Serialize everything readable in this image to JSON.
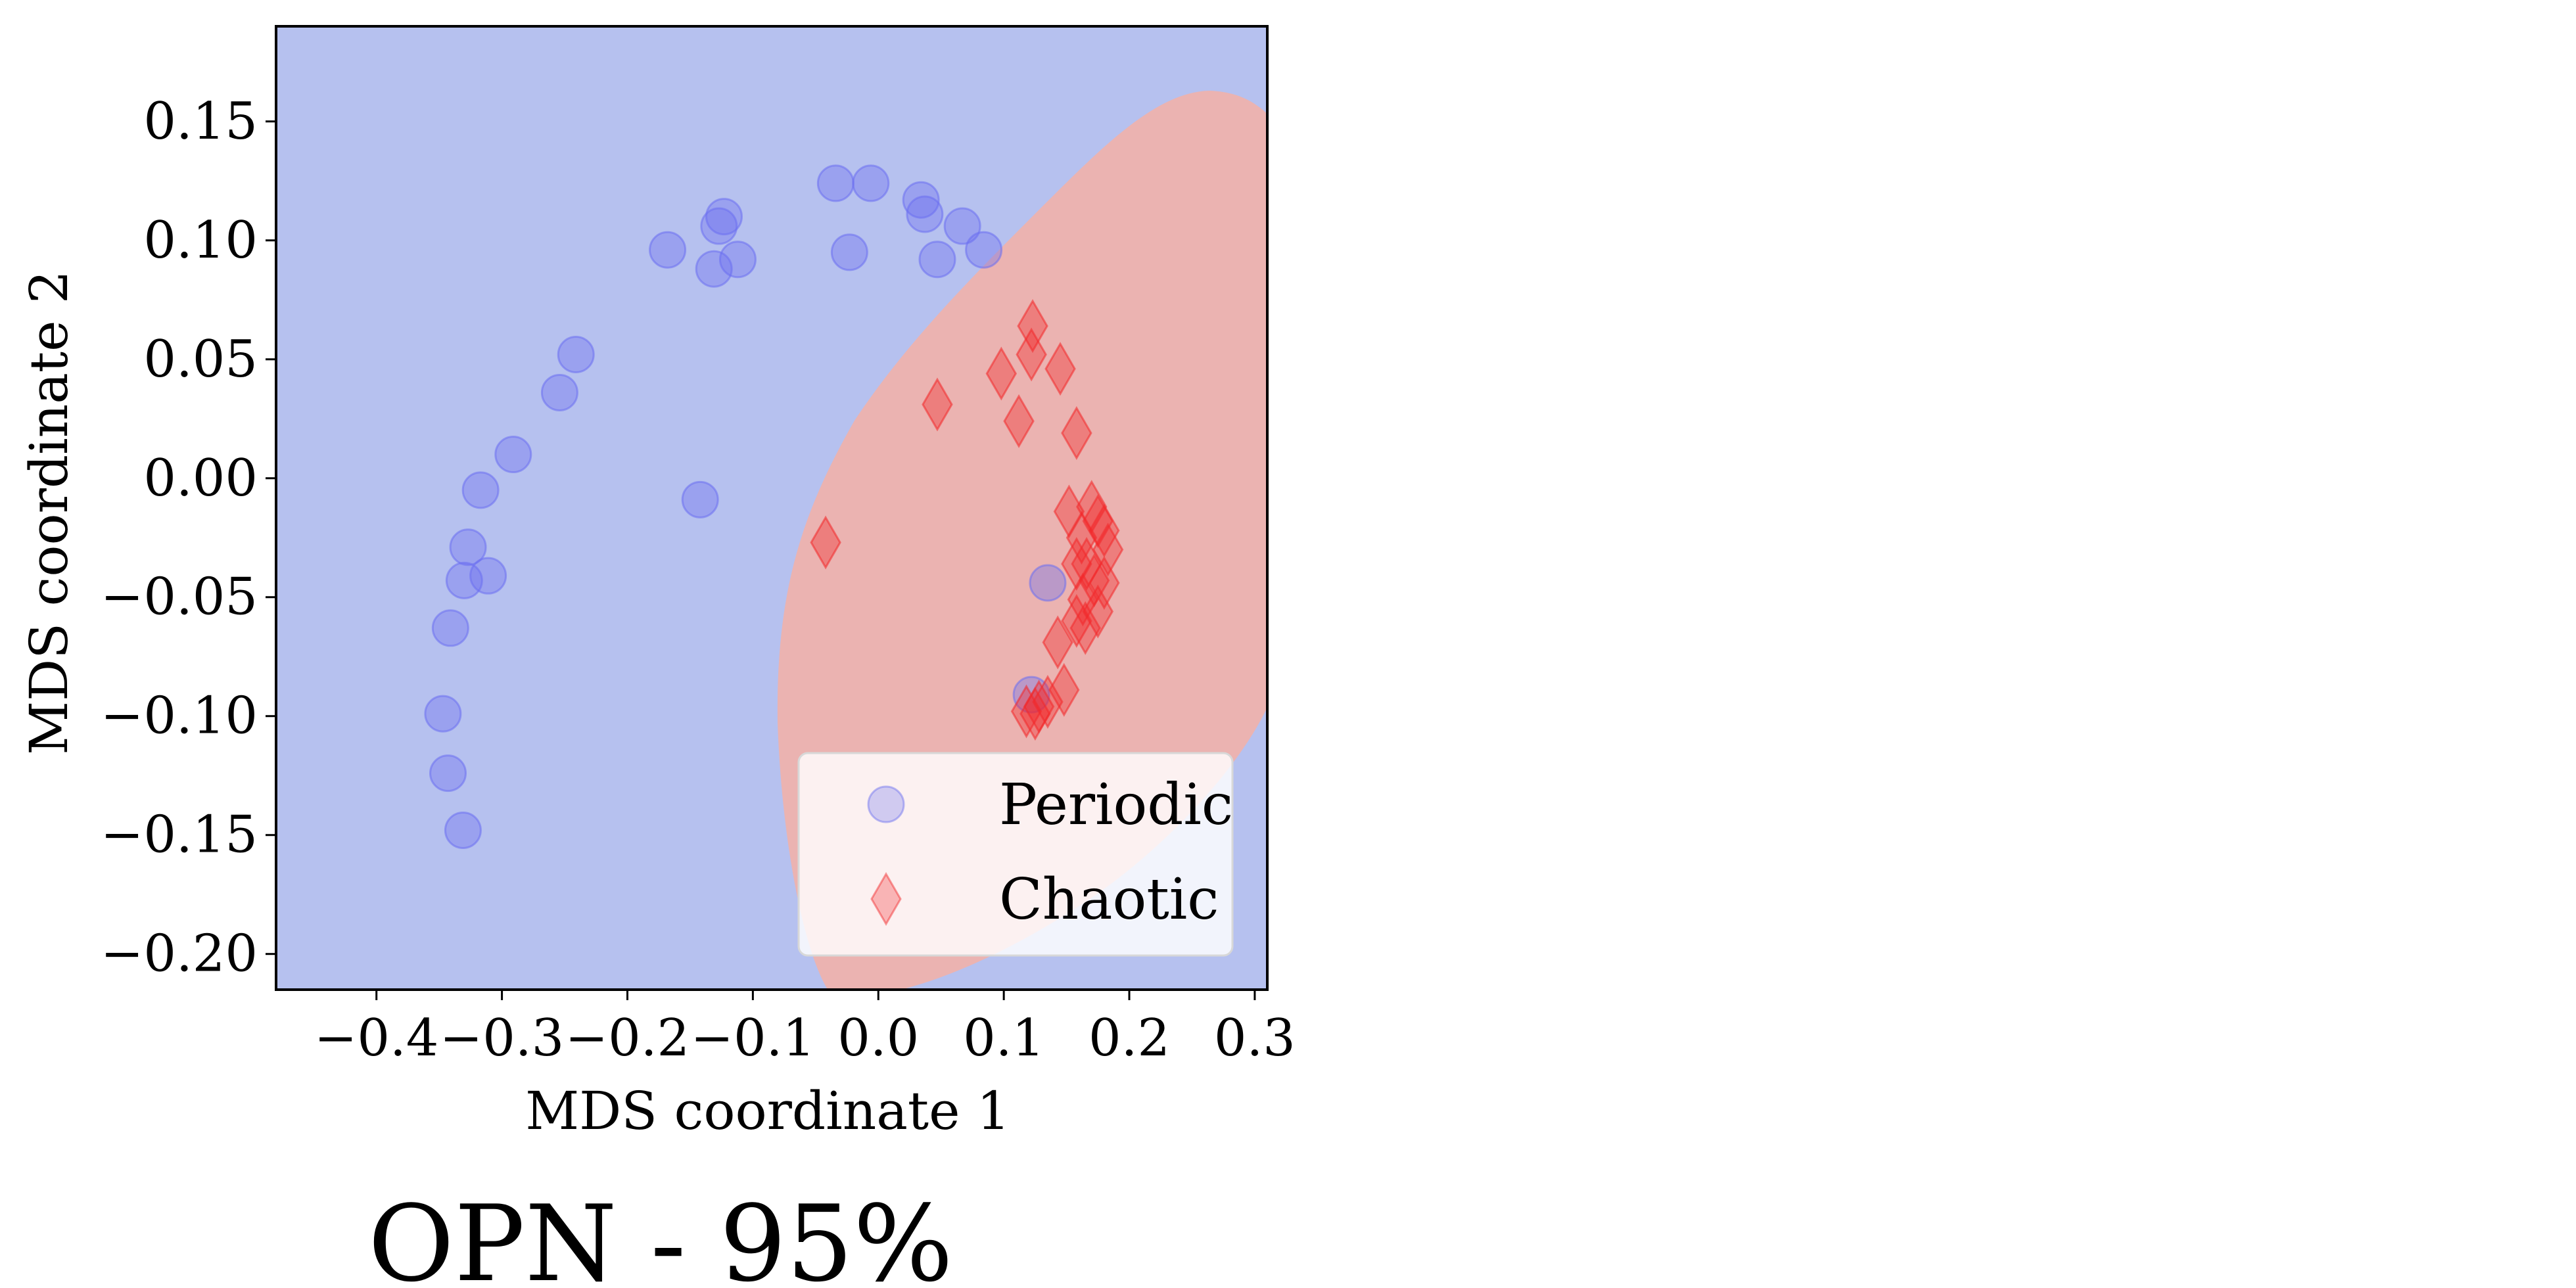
{
  "chart_data": {
    "type": "scatter",
    "title": "",
    "xlabel": "MDS coordinate 1",
    "ylabel": "MDS coordinate 2",
    "xlim": [
      -0.48,
      0.31
    ],
    "ylim": [
      -0.215,
      0.19
    ],
    "xticks": [
      -0.4,
      -0.3,
      -0.2,
      -0.1,
      0.0,
      0.1,
      0.2,
      0.3
    ],
    "xtick_labels": [
      "−0.4",
      "−0.3",
      "−0.2",
      "−0.1",
      "0.0",
      "0.1",
      "0.2",
      "0.3"
    ],
    "yticks": [
      0.15,
      0.1,
      0.05,
      0.0,
      -0.05,
      -0.1,
      -0.15,
      -0.2
    ],
    "ytick_labels": [
      "0.15",
      "0.10",
      "0.05",
      "0.00",
      "−0.05",
      "−0.10",
      "−0.15",
      "−0.20"
    ],
    "grid": false,
    "legend_position": "lower-right",
    "background_color": "#b6c1ef",
    "region_color": "#ebb3b1",
    "series": [
      {
        "name": "Periodic",
        "marker": "circle",
        "color": "#6b6ff0",
        "points": [
          [
            -0.034,
            0.124
          ],
          [
            -0.006,
            0.124
          ],
          [
            0.034,
            0.117
          ],
          [
            0.037,
            0.111
          ],
          [
            0.067,
            0.106
          ],
          [
            0.084,
            0.096
          ],
          [
            0.047,
            0.092
          ],
          [
            -0.023,
            0.095
          ],
          [
            -0.123,
            0.11
          ],
          [
            -0.127,
            0.106
          ],
          [
            -0.112,
            0.092
          ],
          [
            -0.131,
            0.088
          ],
          [
            -0.168,
            0.096
          ],
          [
            -0.241,
            0.052
          ],
          [
            -0.254,
            0.036
          ],
          [
            -0.291,
            0.01
          ],
          [
            -0.317,
            -0.005
          ],
          [
            -0.327,
            -0.029
          ],
          [
            -0.311,
            -0.041
          ],
          [
            -0.33,
            -0.043
          ],
          [
            -0.142,
            -0.009
          ],
          [
            -0.341,
            -0.063
          ],
          [
            -0.347,
            -0.099
          ],
          [
            -0.343,
            -0.124
          ],
          [
            -0.331,
            -0.148
          ],
          [
            0.135,
            -0.044
          ],
          [
            0.122,
            -0.091
          ]
        ]
      },
      {
        "name": "Chaotic",
        "marker": "diamond",
        "color": "#f2282a",
        "points": [
          [
            0.123,
            0.064
          ],
          [
            0.122,
            0.052
          ],
          [
            0.098,
            0.044
          ],
          [
            0.145,
            0.046
          ],
          [
            0.047,
            0.031
          ],
          [
            0.112,
            0.024
          ],
          [
            0.158,
            0.019
          ],
          [
            -0.042,
            -0.027
          ],
          [
            0.152,
            -0.014
          ],
          [
            0.17,
            -0.012
          ],
          [
            0.175,
            -0.018
          ],
          [
            0.18,
            -0.022
          ],
          [
            0.162,
            -0.025
          ],
          [
            0.183,
            -0.03
          ],
          [
            0.166,
            -0.036
          ],
          [
            0.158,
            -0.036
          ],
          [
            0.172,
            -0.043
          ],
          [
            0.18,
            -0.044
          ],
          [
            0.163,
            -0.051
          ],
          [
            0.175,
            -0.056
          ],
          [
            0.158,
            -0.06
          ],
          [
            0.165,
            -0.063
          ],
          [
            0.143,
            -0.069
          ],
          [
            0.148,
            -0.089
          ],
          [
            0.135,
            -0.094
          ],
          [
            0.128,
            -0.096
          ],
          [
            0.118,
            -0.098
          ],
          [
            0.125,
            -0.099
          ]
        ]
      }
    ],
    "legend": [
      {
        "label": "Periodic",
        "marker": "circle"
      },
      {
        "label": "Chaotic",
        "marker": "diamond"
      }
    ]
  },
  "caption": "OPN - 95%"
}
